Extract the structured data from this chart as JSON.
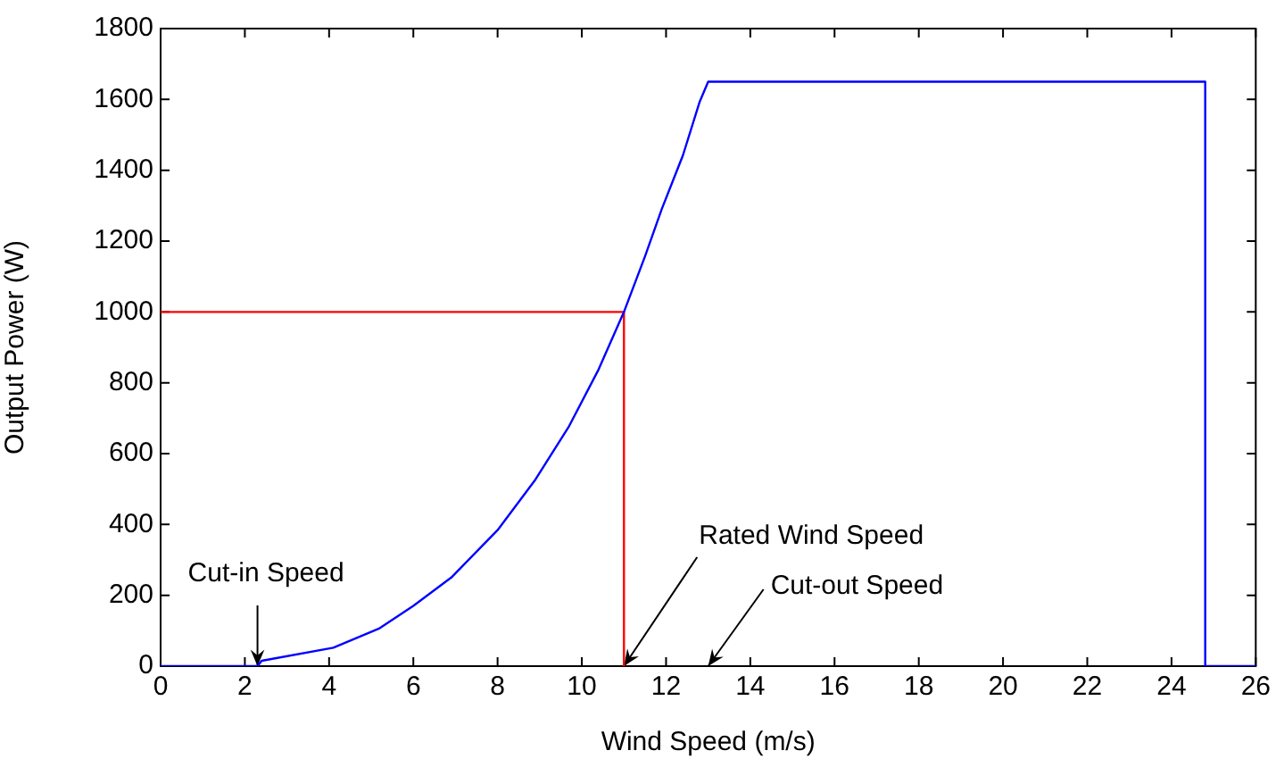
{
  "chart_data": {
    "type": "line",
    "xlabel": "Wind Speed (m/s)",
    "ylabel": "Output Power (W)",
    "xlim": [
      0,
      26
    ],
    "xticks": [
      0,
      2,
      4,
      6,
      8,
      10,
      12,
      14,
      16,
      18,
      20,
      22,
      24,
      26
    ],
    "ylim": [
      0,
      1800
    ],
    "yticks": [
      0,
      200,
      400,
      600,
      800,
      1000,
      1200,
      1400,
      1600,
      1800
    ],
    "grid": false,
    "legend": false,
    "marker": "none",
    "line_style": "solid",
    "series": [
      {
        "color": "#0000ff",
        "x": [
          0,
          2.3,
          2.4,
          4.1,
          5.2,
          6.0,
          6.9,
          8.0,
          8.9,
          9.7,
          10.4,
          11.0,
          11.5,
          11.9,
          12.4,
          12.8,
          13,
          24.8,
          24.8,
          26
        ],
        "values": [
          0,
          0,
          15,
          52,
          107,
          170,
          250,
          384,
          527,
          678,
          838,
          1000,
          1157,
          1291,
          1442,
          1594,
          1650,
          1650,
          0,
          0
        ]
      },
      {
        "color": "#ff0000",
        "x": [
          0,
          11,
          11
        ],
        "values": [
          1000,
          1000,
          0
        ]
      }
    ],
    "annotations": [
      {
        "text": "Cut-in Speed",
        "x": 2.3,
        "y": 0
      },
      {
        "text": "Rated Wind Speed",
        "x": 11,
        "y": 0
      },
      "Cut-out Speed"
    ]
  }
}
